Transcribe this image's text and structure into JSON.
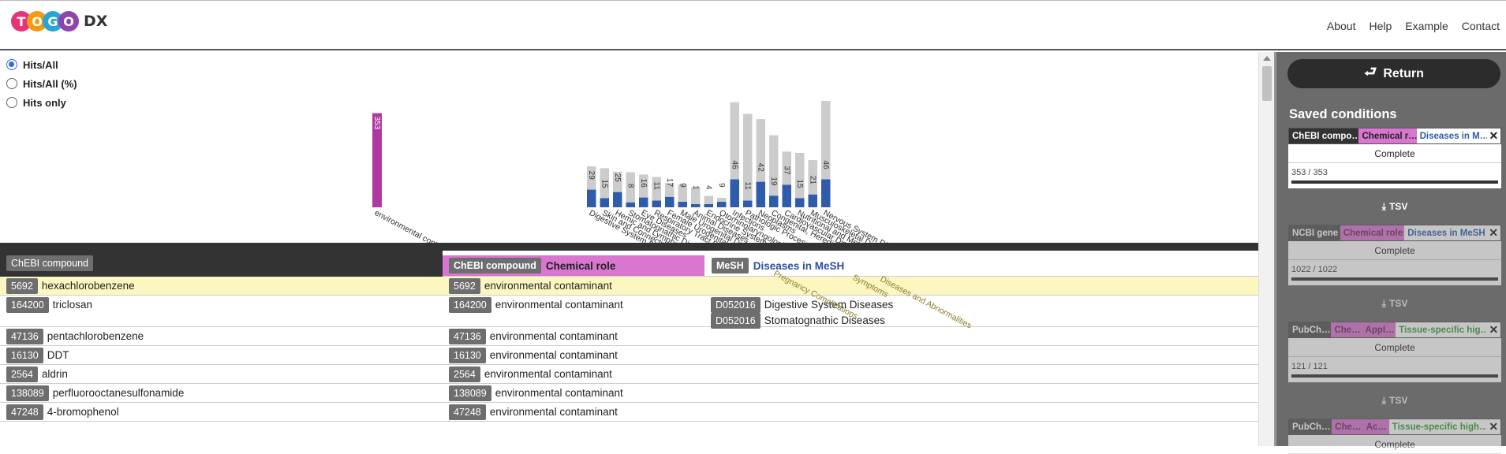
{
  "logo": {
    "letters": [
      "T",
      "O",
      "G",
      "O"
    ],
    "colors": [
      "#e6337a",
      "#f39c12",
      "#2aa3d6",
      "#8e44ad"
    ],
    "suffix": "DX"
  },
  "nav": [
    "About",
    "Help",
    "Example",
    "Contact"
  ],
  "modes": [
    {
      "label": "Hits/All",
      "selected": true
    },
    {
      "label": "Hits/All (%)",
      "selected": false
    },
    {
      "label": "Hits only",
      "selected": false
    }
  ],
  "colors": {
    "chemical_role": "#b0399f",
    "chemical_role_light": "#d876d0",
    "mesh": "#2f5caa",
    "bar_gray": "#cccccc",
    "dark": "#333333"
  },
  "chart_data": [
    {
      "type": "bar",
      "title": "Chemical role",
      "categories": [
        "environmental contaminant"
      ],
      "series": [
        {
          "values": [
            353
          ]
        }
      ],
      "totals": [
        353
      ]
    },
    {
      "type": "bar",
      "title": "Diseases in MeSH",
      "categories": [
        "Digestive System Diseases",
        "Skin and Connective Tissue Diseases",
        "Hemic and Lymphatic Diseases",
        "Stomatognathic Diseases",
        "Eye Diseases",
        "Respiratory Tract Diseases",
        "Female Urogenital Diseases",
        "Male Urogenital Diseases",
        "Animal Diseases",
        "Endocrine System Diseases",
        "Otorhinolaryngologic Diseases",
        "Infections",
        "Pathologic Processes",
        "Neoplasms",
        "Congenital, Hereditary and Neonatal Diseases",
        "Cardiovascular Diseases",
        "Nutritional and Metabolic Diseases",
        "Musculoskeletal Diseases",
        "Nervous System Diseases"
      ],
      "hits": [
        29,
        15,
        25,
        8,
        16,
        11,
        17,
        9,
        1,
        4,
        9,
        46,
        11,
        42,
        19,
        37,
        15,
        21,
        46
      ],
      "totals": [
        155,
        148,
        135,
        133,
        124,
        115,
        92,
        87,
        76,
        43,
        36,
        398,
        354,
        334,
        273,
        211,
        206,
        179,
        403
      ]
    }
  ],
  "chart_labels_extra": [
    "Pregnancy Complications",
    "Symptoms",
    "Diseases and Abnormalities"
  ],
  "table": {
    "col1": {
      "tag": "ChEBI compound"
    },
    "col2": {
      "tag": "ChEBI compound",
      "label": "Chemical role"
    },
    "col3": {
      "tag": "MeSH",
      "label": "Diseases in MeSH"
    },
    "rows": [
      {
        "id": "5692",
        "name": "hexachlorobenzene",
        "role": [
          {
            "id": "5692",
            "text": "environmental contaminant"
          }
        ],
        "mesh": [],
        "highlight": true
      },
      {
        "id": "164200",
        "name": "triclosan",
        "role": [
          {
            "id": "164200",
            "text": "environmental contaminant"
          }
        ],
        "mesh": [
          {
            "id": "D052016",
            "text": "Digestive System Diseases"
          },
          {
            "id": "D052016",
            "text": "Stomatognathic Diseases"
          }
        ]
      },
      {
        "id": "47136",
        "name": "pentachlorobenzene",
        "role": [
          {
            "id": "47136",
            "text": "environmental contaminant"
          }
        ],
        "mesh": []
      },
      {
        "id": "16130",
        "name": "DDT",
        "role": [
          {
            "id": "16130",
            "text": "environmental contaminant"
          }
        ],
        "mesh": []
      },
      {
        "id": "2564",
        "name": "aldrin",
        "role": [
          {
            "id": "2564",
            "text": "environmental contaminant"
          }
        ],
        "mesh": []
      },
      {
        "id": "138089",
        "name": "perfluorooctanesulfonamide",
        "role": [
          {
            "id": "138089",
            "text": "environmental contaminant"
          }
        ],
        "mesh": []
      },
      {
        "id": "47248",
        "name": "4-bromophenol",
        "role": [
          {
            "id": "47248",
            "text": "environmental contaminant"
          }
        ],
        "mesh": []
      }
    ]
  },
  "sidebar": {
    "return_label": "Return",
    "saved_title": "Saved conditions",
    "tsv_label": "TSV",
    "cards": [
      {
        "tags": [
          {
            "text": "ChEBI compo…",
            "bg": "#333333",
            "fg": "#ffffff"
          },
          {
            "text": "Chemical r…",
            "bg": "#d876d0",
            "fg": "#222222"
          },
          {
            "text": "Diseases in M…",
            "bg": "#ffffff",
            "fg": "#2f5caa"
          }
        ],
        "status": "Complete",
        "count": "353 / 353",
        "dim": false
      },
      {
        "tags": [
          {
            "text": "NCBI gene",
            "bg": "#555555",
            "fg": "#ffffff"
          },
          {
            "text": "Chemical role",
            "bg": "#d876d0",
            "fg": "#6a2f60"
          },
          {
            "text": "Diseases in MeSH",
            "bg": "#ffffff",
            "fg": "#2f5caa"
          }
        ],
        "status": "Complete",
        "count": "1022 / 1022",
        "dim": true
      },
      {
        "tags": [
          {
            "text": "PubCh…",
            "bg": "#555555",
            "fg": "#ffffff"
          },
          {
            "text": "Che…",
            "bg": "#d876d0",
            "fg": "#6a2f60"
          },
          {
            "text": "Appl…",
            "bg": "#d876d0",
            "fg": "#6a2f60"
          },
          {
            "text": "Tissue-specific hig…",
            "bg": "#ffffff",
            "fg": "#3a9a3a"
          }
        ],
        "status": "Complete",
        "count": "121 / 121",
        "dim": true
      },
      {
        "tags": [
          {
            "text": "PubCh…",
            "bg": "#555555",
            "fg": "#ffffff"
          },
          {
            "text": "Che…",
            "bg": "#d876d0",
            "fg": "#6a2f60"
          },
          {
            "text": "Ac…",
            "bg": "#d876d0",
            "fg": "#6a2f60"
          },
          {
            "text": "Tissue-specific high…",
            "bg": "#ffffff",
            "fg": "#3a9a3a"
          }
        ],
        "status": "Complete",
        "count": "",
        "dim": true
      }
    ]
  }
}
